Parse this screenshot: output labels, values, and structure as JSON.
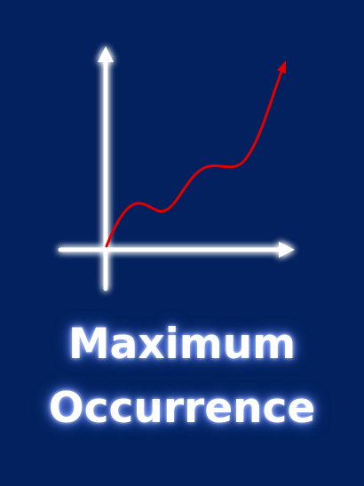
{
  "title": {
    "line1": "Maximum",
    "line2": "Occurrence"
  },
  "colors": {
    "background": "#02215e",
    "axes": "#ffffff",
    "curve": "#e00000",
    "glow": "#7e9cff"
  },
  "icons": {
    "graph": "rising-curve-graph-icon"
  }
}
